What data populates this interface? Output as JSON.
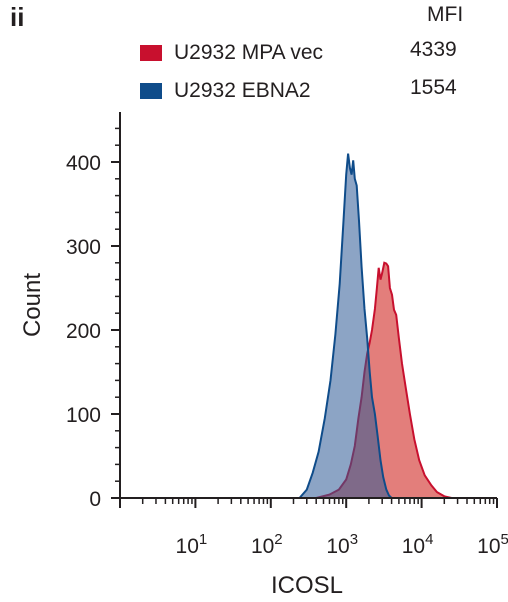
{
  "panel_label": "ii",
  "legend": {
    "header": "MFI",
    "entries": [
      {
        "label": "U2932 MPA vec",
        "value": "4339",
        "color": "#c8102e"
      },
      {
        "label": "U2932 EBNA2",
        "value": "1554",
        "color": "#0f4c8a"
      }
    ]
  },
  "chart_data": {
    "type": "area",
    "xlabel": "ICOSL",
    "ylabel": "Count",
    "x_scale": "log",
    "xlim": [
      1,
      100000
    ],
    "ylim": [
      0,
      420
    ],
    "x_ticks": [
      {
        "value": 10,
        "base": "10",
        "exp": "1"
      },
      {
        "value": 100,
        "base": "10",
        "exp": "2"
      },
      {
        "value": 1000,
        "base": "10",
        "exp": "3"
      },
      {
        "value": 10000,
        "base": "10",
        "exp": "4"
      },
      {
        "value": 100000,
        "base": "10",
        "exp": "5"
      }
    ],
    "y_ticks": [
      0,
      100,
      200,
      300,
      400
    ],
    "series": [
      {
        "name": "U2932 MPA vec",
        "fill": "#d9534f",
        "fill_opacity": 0.75,
        "line": "#c8102e",
        "points": [
          [
            400,
            0
          ],
          [
            600,
            4
          ],
          [
            800,
            10
          ],
          [
            1000,
            22
          ],
          [
            1150,
            40
          ],
          [
            1300,
            62
          ],
          [
            1450,
            95
          ],
          [
            1600,
            120
          ],
          [
            1750,
            150
          ],
          [
            1900,
            172
          ],
          [
            2050,
            185
          ],
          [
            2200,
            200
          ],
          [
            2400,
            225
          ],
          [
            2550,
            250
          ],
          [
            2700,
            274
          ],
          [
            2850,
            260
          ],
          [
            3000,
            268
          ],
          [
            3200,
            280
          ],
          [
            3400,
            279
          ],
          [
            3600,
            276
          ],
          [
            3800,
            250
          ],
          [
            4050,
            242
          ],
          [
            4300,
            224
          ],
          [
            4600,
            218
          ],
          [
            5000,
            190
          ],
          [
            5500,
            160
          ],
          [
            6200,
            130
          ],
          [
            7000,
            100
          ],
          [
            8000,
            70
          ],
          [
            9300,
            45
          ],
          [
            11000,
            27
          ],
          [
            13500,
            15
          ],
          [
            16000,
            7
          ],
          [
            20000,
            2
          ],
          [
            25000,
            0
          ]
        ]
      },
      {
        "name": "U2932 EBNA2",
        "fill": "#2e5a95",
        "fill_opacity": 0.55,
        "line": "#0f4c8a",
        "points": [
          [
            240,
            0
          ],
          [
            300,
            10
          ],
          [
            360,
            30
          ],
          [
            430,
            55
          ],
          [
            520,
            95
          ],
          [
            620,
            140
          ],
          [
            720,
            195
          ],
          [
            820,
            255
          ],
          [
            920,
            330
          ],
          [
            1000,
            385
          ],
          [
            1060,
            410
          ],
          [
            1120,
            393
          ],
          [
            1180,
            385
          ],
          [
            1240,
            402
          ],
          [
            1300,
            380
          ],
          [
            1380,
            372
          ],
          [
            1480,
            330
          ],
          [
            1600,
            275
          ],
          [
            1750,
            225
          ],
          [
            1900,
            190
          ],
          [
            2050,
            150
          ],
          [
            2200,
            120
          ],
          [
            2400,
            100
          ],
          [
            2600,
            75
          ],
          [
            2850,
            45
          ],
          [
            3100,
            25
          ],
          [
            3400,
            10
          ],
          [
            3700,
            3
          ],
          [
            4000,
            0
          ]
        ]
      }
    ]
  }
}
